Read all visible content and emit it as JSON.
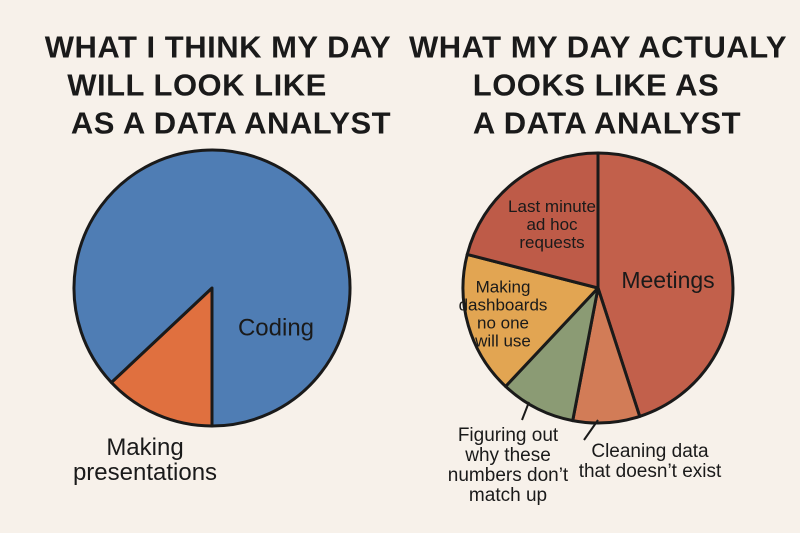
{
  "chart_data": [
    {
      "type": "pie",
      "title": [
        "WHAT I THINK MY DAY",
        "WILL LOOK LIKE",
        "AS A DATA ANALYST"
      ],
      "categories": [
        "Making\npresentations",
        "Coding"
      ],
      "values": [
        13,
        87
      ],
      "colors": [
        "#e0703f",
        "#4f7db4"
      ]
    },
    {
      "type": "pie",
      "title": [
        "WHAT MY DAY ACTUALY",
        "LOOKS LIKE AS",
        "A DATA ANALYST"
      ],
      "categories": [
        "Meetings",
        "Cleaning data\nthat doesn’t exist",
        "Figuring out\nwhy these\nnumbers don’t\nmatch up",
        "Making\ndashboards\nno one\nwill use",
        "Last minute\nad hoc\nrequests"
      ],
      "values": [
        45,
        8,
        9,
        17,
        21
      ],
      "colors": [
        "#c2604b",
        "#d27c57",
        "#8b9b74",
        "#e2a552",
        "#be5b48"
      ]
    }
  ]
}
